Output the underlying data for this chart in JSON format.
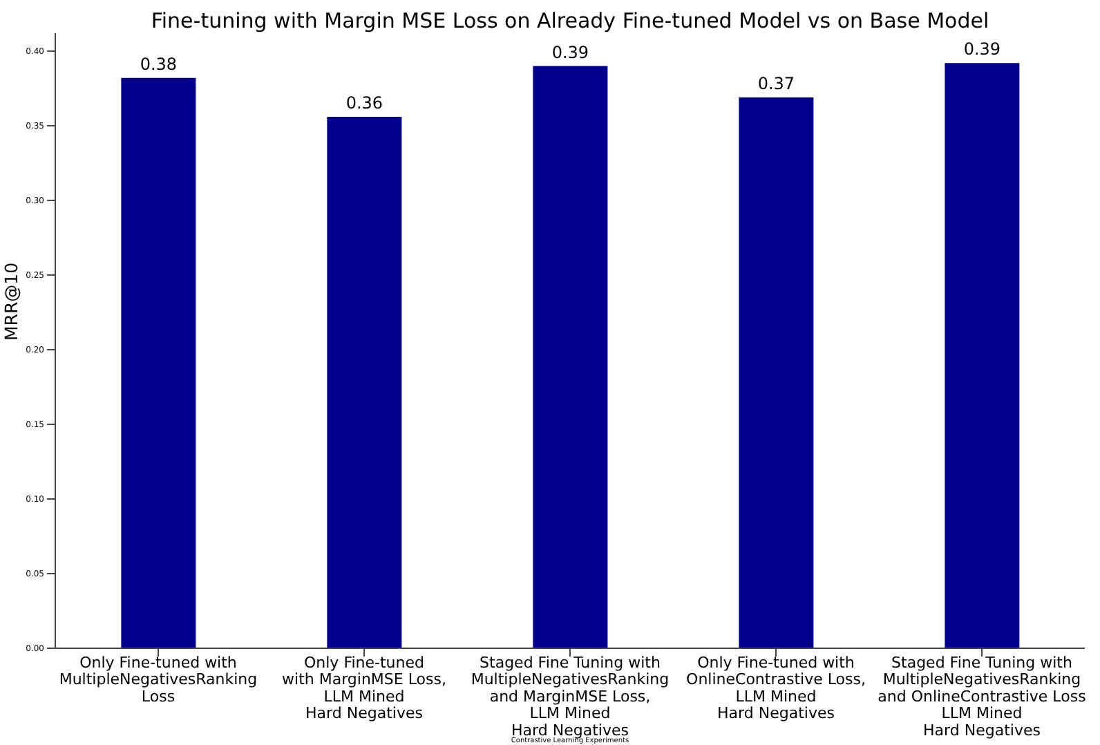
{
  "chart_data": {
    "type": "bar",
    "title": "Fine-tuning with Margin MSE Loss on Already Fine-tuned Model vs on Base Model",
    "xlabel": "Contrastive Learning Experiments",
    "ylabel": "MRR@10",
    "categories": [
      "Only Fine-tuned with\nMultipleNegativesRanking\nLoss",
      "Only Fine-tuned\nwith MarginMSE Loss,\nLLM Mined\nHard Negatives",
      "Staged Fine Tuning with\nMultipleNegativesRanking\nand MarginMSE Loss,\nLLM Mined\nHard Negatives",
      "Only Fine-tuned with\nOnlineContrastive Loss,\nLLM Mined\nHard Negatives",
      "Staged Fine Tuning with\nMultipleNegativesRanking\nand OnlineContrastive Loss\nLLM Mined\nHard Negatives"
    ],
    "values": [
      0.382,
      0.356,
      0.39,
      0.369,
      0.392
    ],
    "value_labels": [
      "0.38",
      "0.36",
      "0.39",
      "0.37",
      "0.39"
    ],
    "color": "#00008b",
    "ylim": [
      0,
      0.412
    ],
    "yticks": [
      {
        "value": 0,
        "label": "0.00"
      },
      {
        "value": 0.05,
        "label": "0.05"
      },
      {
        "value": 0.1,
        "label": "0.10"
      },
      {
        "value": 0.15,
        "label": "0.15"
      },
      {
        "value": 0.2,
        "label": "0.20"
      },
      {
        "value": 0.25,
        "label": "0.25"
      },
      {
        "value": 0.3,
        "label": "0.30"
      },
      {
        "value": 0.35,
        "label": "0.35"
      },
      {
        "value": 0.4,
        "label": "0.40"
      }
    ],
    "grid": false
  }
}
